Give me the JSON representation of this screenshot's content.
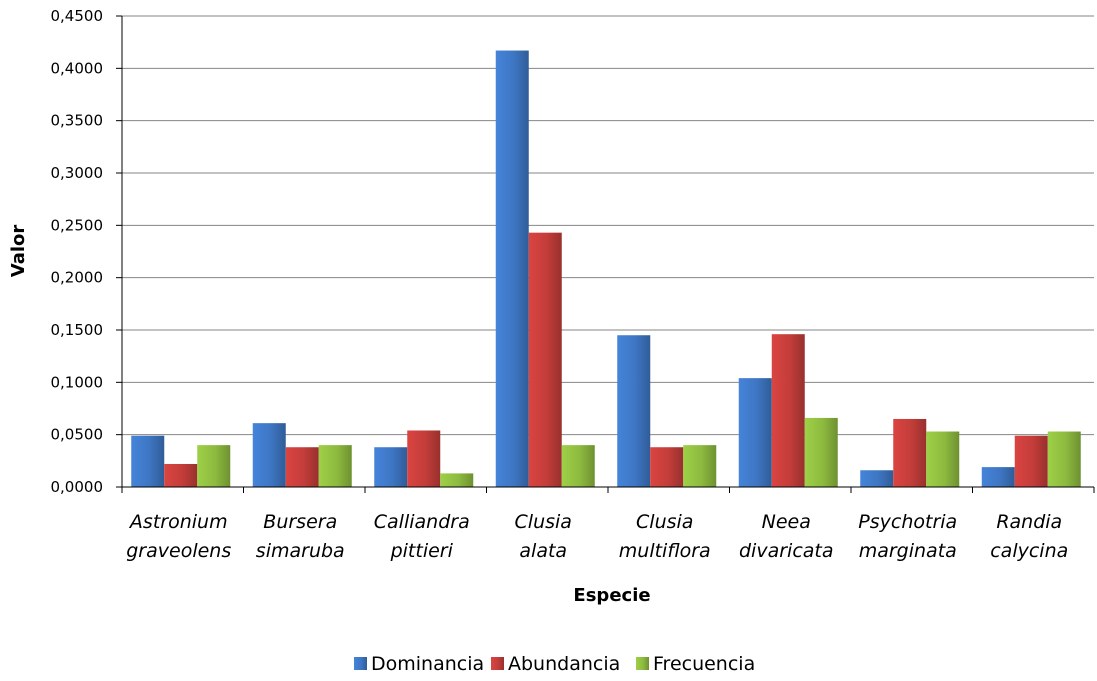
{
  "chart_data": {
    "type": "bar",
    "title": "",
    "xlabel": "Especie",
    "ylabel": "Valor",
    "ylim": [
      0,
      0.45
    ],
    "yticks": [
      "0,0000",
      "0,0500",
      "0,1000",
      "0,1500",
      "0,2000",
      "0,2500",
      "0,3000",
      "0,3500",
      "0,4000",
      "0,4500"
    ],
    "categories": [
      [
        "Astronium",
        "graveolens"
      ],
      [
        "Bursera",
        "simaruba"
      ],
      [
        "Calliandra",
        "pittieri"
      ],
      [
        "Clusia",
        "alata"
      ],
      [
        "Clusia",
        "multiflora"
      ],
      [
        "Neea",
        "divaricata"
      ],
      [
        "Psychotria",
        "marginata"
      ],
      [
        "Randia",
        "calycina"
      ]
    ],
    "series": [
      {
        "name": "Dominancia",
        "color": "#3E76C3",
        "values": [
          0.049,
          0.061,
          0.038,
          0.417,
          0.145,
          0.104,
          0.016,
          0.019
        ]
      },
      {
        "name": "Abundancia",
        "color": "#C33D3A",
        "values": [
          0.022,
          0.038,
          0.054,
          0.243,
          0.038,
          0.146,
          0.065,
          0.049
        ]
      },
      {
        "name": "Frecuencia",
        "color": "#8DBA3F",
        "values": [
          0.04,
          0.04,
          0.013,
          0.04,
          0.04,
          0.066,
          0.053,
          0.053
        ]
      }
    ],
    "grid": true,
    "legend_position": "bottom"
  }
}
